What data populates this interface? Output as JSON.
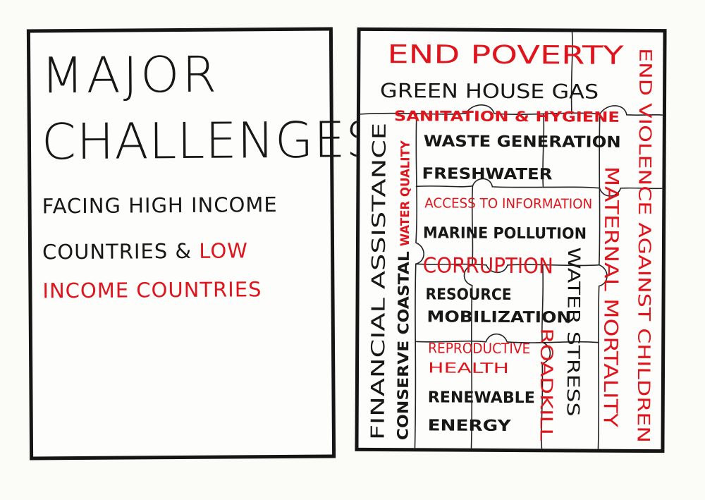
{
  "left_card": {
    "title_line1": "MAJOR",
    "title_line2": "CHALLENGES",
    "subtitle_line1": "FACING HIGH INCOME",
    "subtitle_line2_black": "COUNTRIES & ",
    "subtitle_line2_red": "LOW",
    "subtitle_line3_red": "INCOME COUNTRIES"
  },
  "right_card": {
    "words": {
      "end_poverty": "END POVERTY",
      "greenhouse_gas": "GREEN HOUSE GAS",
      "sanitation_hygiene": "SANITATION & HYGIENE",
      "waste_generation": "WASTE GENERATION",
      "freshwater": "FRESHWATER",
      "access_to_information": "ACCESS TO INFORMATION",
      "marine_pollution": "MARINE POLLUTION",
      "corruption": "CORRUPTION",
      "resource": "RESOURCE",
      "mobilization": "MOBILIZATION",
      "reproductive": "REPRODUCTIVE",
      "health": "HEALTH",
      "renewable": "RENEWABLE",
      "energy": "ENERGY",
      "financial_assistance": "FINANCIAL ASSISTANCE",
      "conserve_coastal": "CONSERVE COASTAL",
      "water_quality": "WATER QUALITY",
      "water_stress": "WATER STRESS",
      "roadkill": "ROADKILL",
      "maternal_mortality": "MATERNAL MORTALITY",
      "end_violence": "END VIOLENCE AGAINST CHILDREN"
    }
  },
  "colors": {
    "ink_black": "#171717",
    "ink_red": "#e0141c",
    "paper": "#fbfbf8"
  }
}
